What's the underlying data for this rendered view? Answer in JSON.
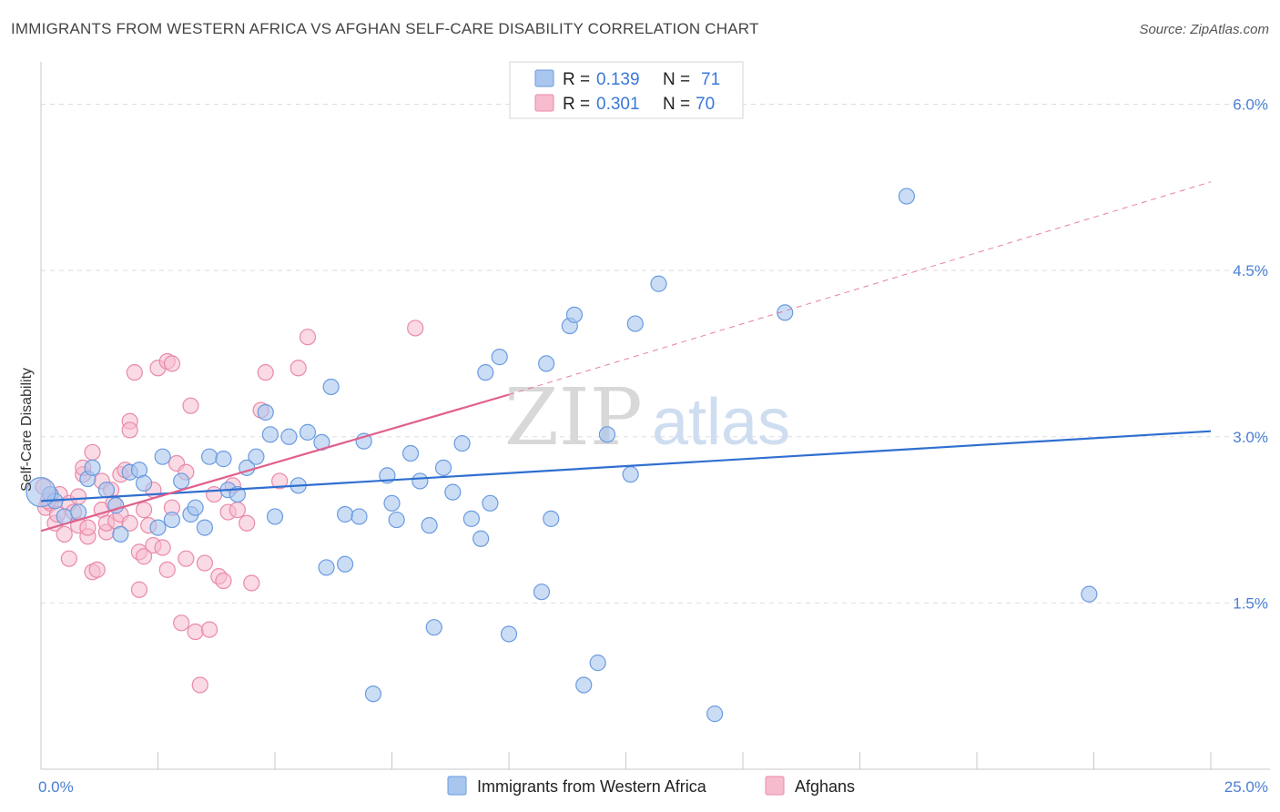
{
  "title": "IMMIGRANTS FROM WESTERN AFRICA VS AFGHAN SELF-CARE DISABILITY CORRELATION CHART",
  "source": "Source: ZipAtlas.com",
  "watermark": {
    "zip": "ZIP",
    "atlas": "atlas"
  },
  "colors": {
    "blue_fill": "#a9c6ee",
    "blue_stroke": "#6a9be0",
    "blue_line": "#2f6fd0",
    "pink_fill": "#f6bccd",
    "pink_stroke": "#e98aa8",
    "pink_line": "#e0608c",
    "grid": "#dddddd",
    "axis_text": "#4a7fd4"
  },
  "legend": {
    "rows": [
      {
        "r_label": "R = ",
        "r_value": "0.139",
        "n_label": "N = ",
        "n_value": "71",
        "color": "#a9c6ee"
      },
      {
        "r_label": "R = ",
        "r_value": "0.301",
        "n_label": "N = ",
        "n_value": "70",
        "color": "#f6bccd"
      }
    ]
  },
  "chart_data": {
    "type": "scatter",
    "title": "IMMIGRANTS FROM WESTERN AFRICA VS AFGHAN SELF-CARE DISABILITY CORRELATION CHART",
    "xlabel": "",
    "ylabel": "Self-Care Disability",
    "xlim": [
      0,
      25
    ],
    "ylim": [
      0,
      6.3
    ],
    "x_tick_labels": [
      "0.0%",
      "25.0%"
    ],
    "y_ticks": [
      1.5,
      3.0,
      4.5,
      6.0
    ],
    "y_tick_labels": [
      "1.5%",
      "3.0%",
      "4.5%",
      "6.0%"
    ],
    "grid": "horizontal dashed",
    "legend_position": "top-center",
    "series": [
      {
        "name": "Immigrants from Western Africa",
        "color": "#a9c6ee",
        "trend": {
          "x": [
            0,
            25
          ],
          "y": [
            2.42,
            3.05
          ]
        },
        "points": [
          [
            0.2,
            2.48
          ],
          [
            0.3,
            2.42
          ],
          [
            0.5,
            2.28
          ],
          [
            0.8,
            2.32
          ],
          [
            1.0,
            2.62
          ],
          [
            1.1,
            2.72
          ],
          [
            1.4,
            2.52
          ],
          [
            1.6,
            2.38
          ],
          [
            1.7,
            2.12
          ],
          [
            1.9,
            2.68
          ],
          [
            2.1,
            2.7
          ],
          [
            2.2,
            2.58
          ],
          [
            2.5,
            2.18
          ],
          [
            2.6,
            2.82
          ],
          [
            2.8,
            2.25
          ],
          [
            3.0,
            2.6
          ],
          [
            3.2,
            2.3
          ],
          [
            3.3,
            2.36
          ],
          [
            3.5,
            2.18
          ],
          [
            3.6,
            2.82
          ],
          [
            3.9,
            2.8
          ],
          [
            4.0,
            2.52
          ],
          [
            4.2,
            2.48
          ],
          [
            4.4,
            2.72
          ],
          [
            4.6,
            2.82
          ],
          [
            4.8,
            3.22
          ],
          [
            4.9,
            3.02
          ],
          [
            5.0,
            2.28
          ],
          [
            5.3,
            3.0
          ],
          [
            5.5,
            2.56
          ],
          [
            5.7,
            3.04
          ],
          [
            6.0,
            2.95
          ],
          [
            6.1,
            1.82
          ],
          [
            6.2,
            3.45
          ],
          [
            6.5,
            2.3
          ],
          [
            6.5,
            1.85
          ],
          [
            6.8,
            2.28
          ],
          [
            6.9,
            2.96
          ],
          [
            7.1,
            0.68
          ],
          [
            7.4,
            2.65
          ],
          [
            7.5,
            2.4
          ],
          [
            7.6,
            2.25
          ],
          [
            7.9,
            2.85
          ],
          [
            8.1,
            2.6
          ],
          [
            8.3,
            2.2
          ],
          [
            8.4,
            1.28
          ],
          [
            8.6,
            2.72
          ],
          [
            8.8,
            2.5
          ],
          [
            9.0,
            2.94
          ],
          [
            9.2,
            2.26
          ],
          [
            9.4,
            2.08
          ],
          [
            9.6,
            2.4
          ],
          [
            9.5,
            3.58
          ],
          [
            9.8,
            3.72
          ],
          [
            10.0,
            1.22
          ],
          [
            10.7,
            1.6
          ],
          [
            10.8,
            3.66
          ],
          [
            10.9,
            2.26
          ],
          [
            11.3,
            4.0
          ],
          [
            11.4,
            4.1
          ],
          [
            11.6,
            0.76
          ],
          [
            11.9,
            0.96
          ],
          [
            12.1,
            3.02
          ],
          [
            12.6,
            2.66
          ],
          [
            12.7,
            4.02
          ],
          [
            13.2,
            4.38
          ],
          [
            14.4,
            0.5
          ],
          [
            15.9,
            4.12
          ],
          [
            18.5,
            5.17
          ],
          [
            22.4,
            1.58
          ],
          [
            0.0,
            2.5
          ]
        ]
      },
      {
        "name": "Afghans",
        "color": "#f6bccd",
        "trend": {
          "x": [
            0,
            10
          ],
          "y": [
            2.15,
            3.38
          ]
        },
        "trend_dashed": {
          "x": [
            10,
            25
          ],
          "y": [
            3.38,
            5.3
          ]
        },
        "points": [
          [
            0.1,
            2.36
          ],
          [
            0.2,
            2.4
          ],
          [
            0.3,
            2.22
          ],
          [
            0.4,
            2.48
          ],
          [
            0.5,
            2.12
          ],
          [
            0.6,
            2.4
          ],
          [
            0.6,
            1.9
          ],
          [
            0.7,
            2.32
          ],
          [
            0.8,
            2.46
          ],
          [
            0.8,
            2.2
          ],
          [
            0.9,
            2.66
          ],
          [
            0.9,
            2.72
          ],
          [
            1.0,
            2.1
          ],
          [
            1.0,
            2.18
          ],
          [
            1.1,
            1.78
          ],
          [
            1.1,
            2.86
          ],
          [
            1.2,
            1.8
          ],
          [
            1.3,
            2.6
          ],
          [
            1.3,
            2.34
          ],
          [
            1.4,
            2.14
          ],
          [
            1.4,
            2.22
          ],
          [
            1.5,
            2.52
          ],
          [
            1.6,
            2.24
          ],
          [
            1.7,
            2.66
          ],
          [
            1.7,
            2.3
          ],
          [
            1.8,
            2.7
          ],
          [
            1.9,
            2.22
          ],
          [
            1.9,
            3.14
          ],
          [
            1.9,
            3.06
          ],
          [
            2.0,
            3.58
          ],
          [
            2.1,
            1.96
          ],
          [
            2.1,
            1.62
          ],
          [
            2.2,
            2.34
          ],
          [
            2.2,
            1.92
          ],
          [
            2.3,
            2.2
          ],
          [
            2.4,
            2.02
          ],
          [
            2.4,
            2.52
          ],
          [
            2.5,
            3.62
          ],
          [
            2.6,
            2.0
          ],
          [
            2.7,
            1.8
          ],
          [
            2.7,
            3.68
          ],
          [
            2.8,
            3.66
          ],
          [
            2.8,
            2.36
          ],
          [
            2.9,
            2.76
          ],
          [
            3.0,
            1.32
          ],
          [
            3.1,
            1.9
          ],
          [
            3.1,
            2.68
          ],
          [
            3.2,
            3.28
          ],
          [
            3.3,
            1.24
          ],
          [
            3.4,
            0.76
          ],
          [
            3.5,
            1.86
          ],
          [
            3.6,
            1.26
          ],
          [
            3.7,
            2.48
          ],
          [
            3.8,
            1.74
          ],
          [
            3.9,
            1.7
          ],
          [
            4.0,
            2.32
          ],
          [
            4.1,
            2.56
          ],
          [
            4.2,
            2.34
          ],
          [
            4.4,
            2.22
          ],
          [
            4.5,
            1.68
          ],
          [
            4.7,
            3.24
          ],
          [
            4.8,
            3.58
          ],
          [
            5.1,
            2.6
          ],
          [
            5.5,
            3.62
          ],
          [
            5.7,
            3.9
          ],
          [
            8.0,
            3.98
          ],
          [
            0.15,
            2.42
          ],
          [
            0.35,
            2.3
          ],
          [
            0.05,
            2.55
          ],
          [
            1.55,
            2.4
          ]
        ]
      }
    ]
  },
  "bottom_legend": [
    {
      "label": "Immigrants from Western Africa",
      "color": "#a9c6ee"
    },
    {
      "label": "Afghans",
      "color": "#f6bccd"
    }
  ]
}
